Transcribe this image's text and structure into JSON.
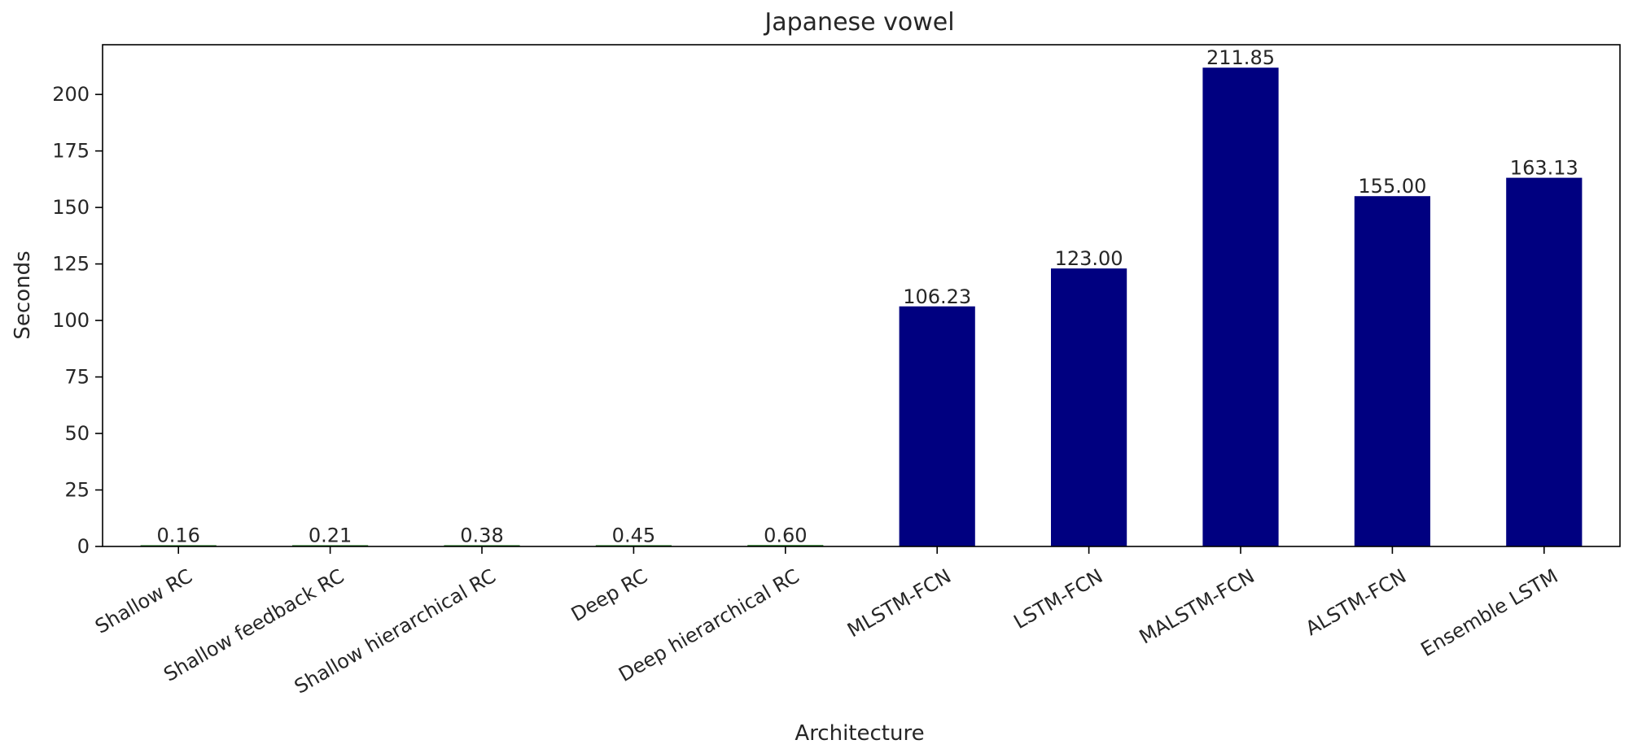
{
  "chart_data": {
    "type": "bar",
    "title": "Japanese vowel",
    "xlabel": "Architecture",
    "ylabel": "Seconds",
    "ylim": [
      0,
      222
    ],
    "yticks": [
      0,
      25,
      50,
      75,
      100,
      125,
      150,
      175,
      200
    ],
    "categories": [
      "Shallow RC",
      "Shallow feedback RC",
      "Shallow hierarchical RC",
      "Deep RC",
      "Deep hierarchical RC",
      "MLSTM-FCN",
      "LSTM-FCN",
      "MALSTM-FCN",
      "ALSTM-FCN",
      "Ensemble LSTM"
    ],
    "values": [
      0.16,
      0.21,
      0.38,
      0.45,
      0.6,
      106.23,
      123.0,
      211.85,
      155.0,
      163.13
    ],
    "value_labels": [
      "0.16",
      "0.21",
      "0.38",
      "0.45",
      "0.60",
      "106.23",
      "123.00",
      "211.85",
      "155.00",
      "163.13"
    ],
    "bar_colors": [
      "#006400",
      "#006400",
      "#006400",
      "#006400",
      "#006400",
      "#000080",
      "#000080",
      "#000080",
      "#000080",
      "#000080"
    ],
    "grid": false,
    "legend": "none"
  }
}
